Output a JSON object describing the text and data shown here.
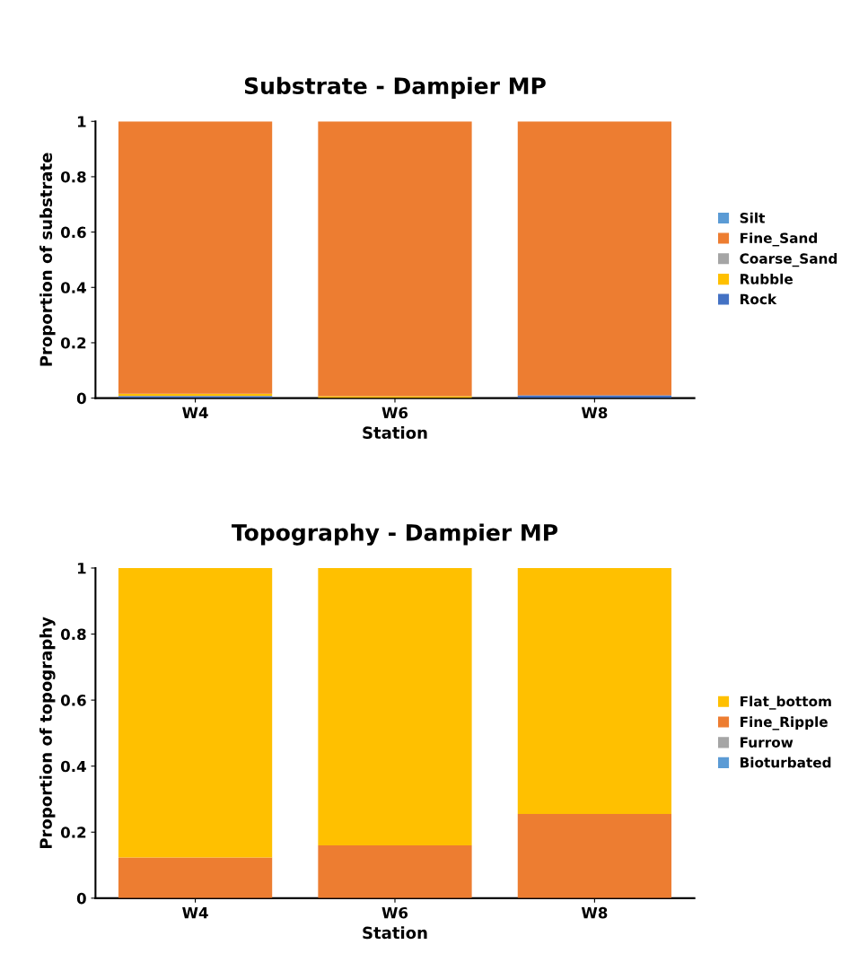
{
  "chart_data": [
    {
      "type": "bar",
      "stacked": true,
      "title": "Substrate - Dampier MP",
      "xlabel": "Station",
      "ylabel": "Proportion of substrate",
      "categories": [
        "W4",
        "W6",
        "W8"
      ],
      "ylim": [
        0,
        1
      ],
      "yticks": [
        0,
        0.2,
        0.4,
        0.6,
        0.8,
        1
      ],
      "grid": false,
      "legend": "right",
      "series": [
        {
          "name": "Rock",
          "color": "#4472c4",
          "values": [
            0.008,
            0,
            0.01
          ]
        },
        {
          "name": "Rubble",
          "color": "#ffc000",
          "values": [
            0.008,
            0.007,
            0
          ]
        },
        {
          "name": "Coarse_Sand",
          "color": "#a5a5a5",
          "values": [
            0,
            0,
            0
          ]
        },
        {
          "name": "Fine_Sand",
          "color": "#ed7d31",
          "values": [
            0.984,
            0.993,
            0.99
          ]
        },
        {
          "name": "Silt",
          "color": "#5b9bd5",
          "values": [
            0,
            0,
            0
          ]
        }
      ]
    },
    {
      "type": "bar",
      "stacked": true,
      "title": "Topography - Dampier MP",
      "xlabel": "Station",
      "ylabel": "Proportion of topography",
      "categories": [
        "W4",
        "W6",
        "W8"
      ],
      "ylim": [
        0,
        1
      ],
      "yticks": [
        0,
        0.2,
        0.4,
        0.6,
        0.8,
        1
      ],
      "grid": false,
      "legend": "right",
      "series": [
        {
          "name": "Bioturbated",
          "color": "#5b9bd5",
          "values": [
            0,
            0,
            0
          ]
        },
        {
          "name": "Furrow",
          "color": "#a5a5a5",
          "values": [
            0,
            0,
            0
          ]
        },
        {
          "name": "Fine_Ripple",
          "color": "#ed7d31",
          "values": [
            0.123,
            0.16,
            0.255
          ]
        },
        {
          "name": "Flat_bottom",
          "color": "#ffc000",
          "values": [
            0.877,
            0.84,
            0.745
          ]
        }
      ]
    }
  ]
}
